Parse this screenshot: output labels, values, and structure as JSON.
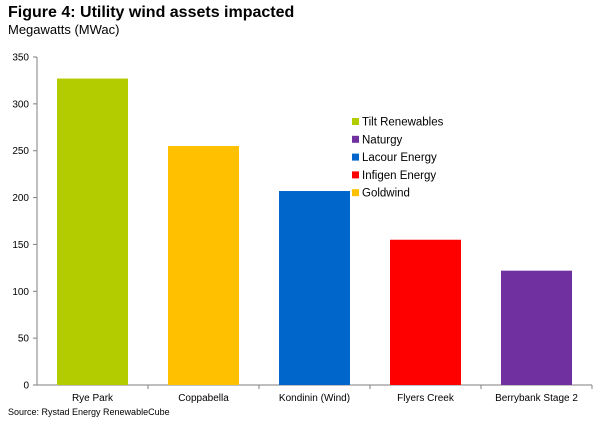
{
  "header": {
    "title": "Figure 4: Utility wind assets impacted",
    "subtitle": "Megawatts (MWac)"
  },
  "footer": {
    "source": "Source: Rystad Energy RenewableCube"
  },
  "chart_data": {
    "type": "bar",
    "title": "Figure 4: Utility wind assets impacted",
    "subtitle": "Megawatts (MWac)",
    "xlabel": "",
    "ylabel": "Megawatts (MWac)",
    "ylim": [
      0,
      350
    ],
    "yticks": [
      0,
      50,
      100,
      150,
      200,
      250,
      300,
      350
    ],
    "grid": false,
    "legend_position": "right",
    "categories": [
      "Rye Park",
      "Coppabella",
      "Kondinin (Wind)",
      "Flyers Creek",
      "Berrybank Stage 2"
    ],
    "values": [
      327,
      255,
      207,
      155,
      122
    ],
    "bar_owner": [
      "Tilt Renewables",
      "Goldwind",
      "Lacour Energy",
      "Infigen Energy",
      "Naturgy"
    ],
    "legend": [
      {
        "name": "Tilt Renewables",
        "color": "#b3cc00"
      },
      {
        "name": "Naturgy",
        "color": "#7030a0"
      },
      {
        "name": "Lacour Energy",
        "color": "#0066cc"
      },
      {
        "name": "Infigen Energy",
        "color": "#ff0000"
      },
      {
        "name": "Goldwind",
        "color": "#ffc000"
      }
    ]
  }
}
